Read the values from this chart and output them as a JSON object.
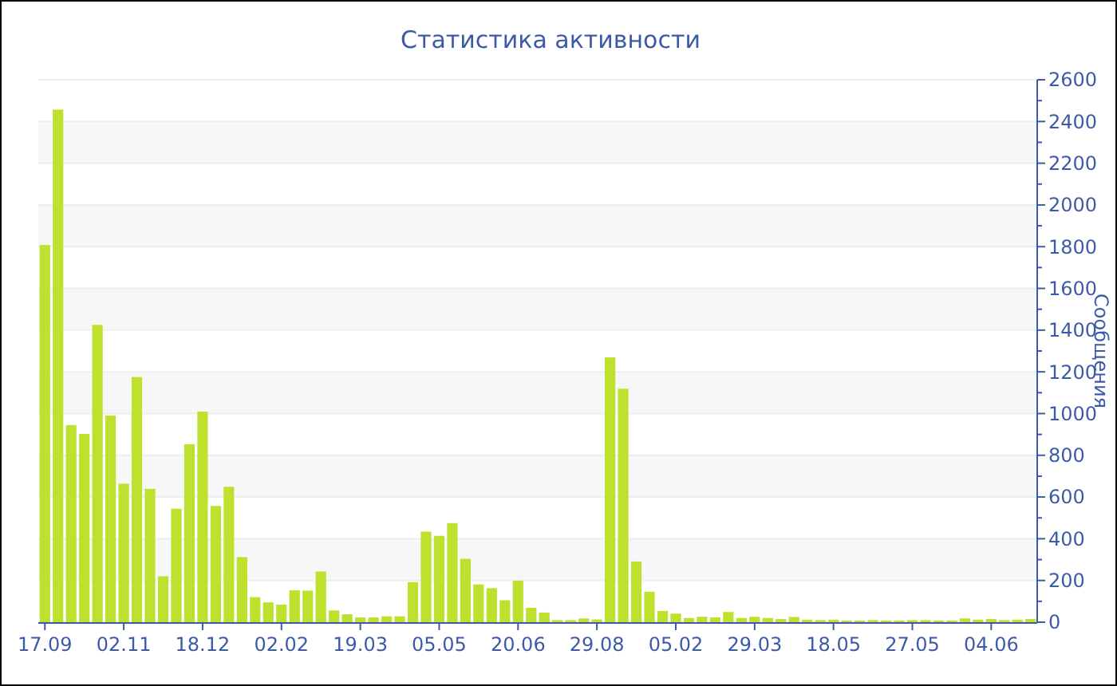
{
  "chart_data": {
    "type": "bar",
    "title": "Статистика активности",
    "ylabel": "Сообщения",
    "color": "#bde12d",
    "categories": [
      "17.09",
      null,
      null,
      null,
      null,
      null,
      "02.11",
      null,
      null,
      null,
      null,
      null,
      "18.12",
      null,
      null,
      null,
      null,
      null,
      "02.02",
      null,
      null,
      null,
      null,
      null,
      "19.03",
      null,
      null,
      null,
      null,
      null,
      "05.05",
      null,
      null,
      null,
      null,
      null,
      "20.06",
      null,
      null,
      null,
      null,
      null,
      "29.08",
      null,
      null,
      null,
      null,
      null,
      "05.02",
      null,
      null,
      null,
      null,
      null,
      "29.03",
      null,
      null,
      null,
      null,
      null,
      "18.05",
      null,
      null,
      null,
      null,
      null,
      "27.05",
      null,
      null,
      null,
      null,
      null,
      "04.06",
      null,
      null,
      null
    ],
    "values": [
      1808,
      2457,
      945,
      902,
      1425,
      991,
      664,
      1175,
      639,
      220,
      544,
      853,
      1009,
      557,
      649,
      312,
      120,
      95,
      84,
      153,
      151,
      243,
      56,
      38,
      23,
      23,
      28,
      28,
      192,
      434,
      414,
      475,
      304,
      181,
      163,
      105,
      199,
      69,
      46,
      10,
      10,
      18,
      13,
      1269,
      1119,
      291,
      146,
      54,
      41,
      20,
      26,
      23,
      49,
      20,
      26,
      20,
      15,
      25,
      12,
      10,
      12,
      8,
      8,
      10,
      8,
      8,
      10,
      10,
      8,
      8,
      18,
      12,
      15,
      10,
      12,
      15
    ],
    "ylim": [
      0,
      2600
    ],
    "yticks": [
      0,
      {
        "value": 100,
        "label": null
      },
      200,
      {
        "value": 300,
        "label": null
      },
      400,
      {
        "value": 500,
        "label": null
      },
      600,
      {
        "value": 700,
        "label": null
      },
      800,
      {
        "value": 900,
        "label": null
      },
      1000,
      {
        "value": 1100,
        "label": null
      },
      1200,
      {
        "value": 1300,
        "label": null
      },
      1400,
      {
        "value": 1500,
        "label": null
      },
      1600,
      {
        "value": 1700,
        "label": null
      },
      1800,
      {
        "value": 1900,
        "label": null
      },
      2000,
      {
        "value": 2100,
        "label": null
      },
      2200,
      {
        "value": 2300,
        "label": null
      },
      2400,
      {
        "value": 2500,
        "label": null
      },
      2600
    ],
    "grid": "y"
  }
}
